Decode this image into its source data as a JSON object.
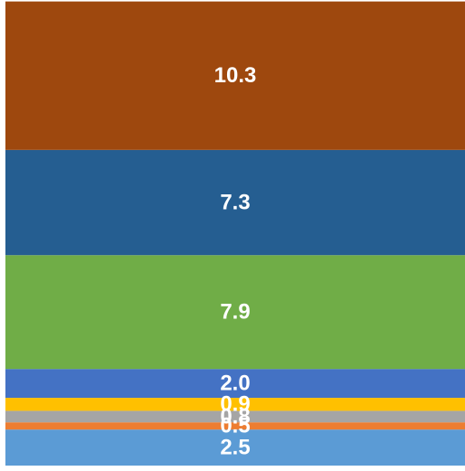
{
  "chart_data": {
    "type": "bar",
    "subtype": "stacked",
    "title": "",
    "xlabel": "",
    "ylabel": "",
    "ylim": [
      0,
      31.8
    ],
    "grid": false,
    "legend": "none",
    "series": [
      {
        "value": 2.5,
        "label": "2.5",
        "color": "#5B9BD5"
      },
      {
        "value": 0.5,
        "label": "0.5",
        "color": "#ED7D31"
      },
      {
        "value": 0.8,
        "label": "0.8",
        "color": "#A5A5A5"
      },
      {
        "value": 0.9,
        "label": "0.9",
        "color": "#FFC000"
      },
      {
        "value": 2.0,
        "label": "2.0",
        "color": "#4472C4"
      },
      {
        "value": 7.9,
        "label": "7.9",
        "color": "#70AD47"
      },
      {
        "value": 7.3,
        "label": "7.3",
        "color": "#255E91"
      },
      {
        "value": 10.3,
        "label": "10.3",
        "color": "#9E480E"
      }
    ]
  }
}
